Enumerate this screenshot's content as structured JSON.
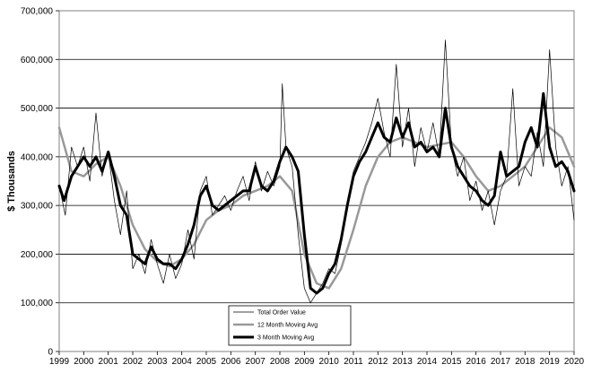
{
  "chart_data": {
    "type": "line",
    "title": "",
    "xlabel": "",
    "ylabel": "$ Thousands",
    "xlim": [
      1999,
      2020
    ],
    "ylim": [
      0,
      700000
    ],
    "y_ticks": [
      0,
      100000,
      200000,
      300000,
      400000,
      500000,
      600000,
      700000
    ],
    "y_tick_labels": [
      "0",
      "100,000",
      "200,000",
      "300,000",
      "400,000",
      "500,000",
      "600,000",
      "700,000"
    ],
    "x_ticks": [
      1999,
      2000,
      2001,
      2002,
      2003,
      2004,
      2005,
      2006,
      2007,
      2008,
      2009,
      2010,
      2011,
      2012,
      2013,
      2014,
      2015,
      2016,
      2017,
      2018,
      2019,
      2020
    ],
    "x_tick_labels": [
      "1999",
      "2000",
      "2001",
      "2002",
      "2003",
      "2004",
      "2005",
      "2006",
      "2007",
      "2008",
      "2009",
      "2010",
      "2011",
      "2012",
      "2013",
      "2014",
      "2015",
      "2016",
      "2017",
      "2018",
      "2019",
      "2020"
    ],
    "grid": "horizontal",
    "legend_position": "bottom-center",
    "series": [
      {
        "name": "Total Order Value",
        "color": "#000000",
        "width": 0.7,
        "x": [
          1999.0,
          1999.25,
          1999.5,
          1999.75,
          2000.0,
          2000.25,
          2000.5,
          2000.75,
          2001.0,
          2001.25,
          2001.5,
          2001.75,
          2002.0,
          2002.25,
          2002.5,
          2002.75,
          2003.0,
          2003.25,
          2003.5,
          2003.75,
          2004.0,
          2004.25,
          2004.5,
          2004.75,
          2005.0,
          2005.25,
          2005.5,
          2005.75,
          2006.0,
          2006.25,
          2006.5,
          2006.75,
          2007.0,
          2007.25,
          2007.5,
          2007.75,
          2008.0,
          2008.1,
          2008.25,
          2008.5,
          2008.75,
          2009.0,
          2009.25,
          2009.5,
          2009.75,
          2010.0,
          2010.25,
          2010.5,
          2010.75,
          2011.0,
          2011.25,
          2011.5,
          2011.75,
          2012.0,
          2012.25,
          2012.5,
          2012.75,
          2013.0,
          2013.25,
          2013.5,
          2013.75,
          2014.0,
          2014.25,
          2014.5,
          2014.75,
          2015.0,
          2015.25,
          2015.5,
          2015.75,
          2016.0,
          2016.25,
          2016.5,
          2016.75,
          2017.0,
          2017.25,
          2017.5,
          2017.75,
          2018.0,
          2018.25,
          2018.5,
          2018.75,
          2019.0,
          2019.25,
          2019.5,
          2019.75,
          2020.0
        ],
        "values": [
          340000,
          280000,
          420000,
          380000,
          420000,
          350000,
          490000,
          360000,
          410000,
          310000,
          240000,
          330000,
          170000,
          200000,
          160000,
          230000,
          180000,
          140000,
          200000,
          150000,
          180000,
          250000,
          190000,
          330000,
          360000,
          280000,
          300000,
          320000,
          290000,
          330000,
          360000,
          310000,
          390000,
          330000,
          370000,
          340000,
          380000,
          550000,
          420000,
          380000,
          240000,
          130000,
          100000,
          120000,
          140000,
          170000,
          160000,
          220000,
          300000,
          370000,
          400000,
          430000,
          470000,
          520000,
          450000,
          400000,
          590000,
          420000,
          500000,
          380000,
          460000,
          410000,
          470000,
          400000,
          640000,
          420000,
          360000,
          400000,
          310000,
          350000,
          290000,
          330000,
          260000,
          330000,
          360000,
          540000,
          340000,
          380000,
          360000,
          450000,
          380000,
          620000,
          420000,
          340000,
          380000,
          270000
        ]
      },
      {
        "name": "12 Month Moving Avg",
        "color": "#999999",
        "width": 2.5,
        "x": [
          1999.0,
          1999.5,
          2000.0,
          2000.5,
          2001.0,
          2001.5,
          2002.0,
          2002.5,
          2003.0,
          2003.5,
          2004.0,
          2004.5,
          2005.0,
          2005.5,
          2006.0,
          2006.5,
          2007.0,
          2007.5,
          2008.0,
          2008.5,
          2009.0,
          2009.5,
          2010.0,
          2010.5,
          2011.0,
          2011.5,
          2012.0,
          2012.5,
          2013.0,
          2013.5,
          2014.0,
          2014.5,
          2015.0,
          2015.5,
          2016.0,
          2016.5,
          2017.0,
          2017.5,
          2018.0,
          2018.5,
          2019.0,
          2019.5,
          2020.0
        ],
        "values": [
          460000,
          370000,
          360000,
          385000,
          400000,
          340000,
          260000,
          210000,
          185000,
          175000,
          190000,
          220000,
          270000,
          290000,
          300000,
          320000,
          330000,
          340000,
          360000,
          330000,
          200000,
          140000,
          130000,
          170000,
          250000,
          340000,
          400000,
          430000,
          440000,
          430000,
          420000,
          425000,
          430000,
          400000,
          360000,
          330000,
          340000,
          360000,
          380000,
          420000,
          460000,
          440000,
          380000
        ]
      },
      {
        "name": "3 Month Moving Avg",
        "color": "#000000",
        "width": 3,
        "x": [
          1999.0,
          1999.2,
          1999.5,
          1999.75,
          2000.0,
          2000.25,
          2000.5,
          2000.75,
          2001.0,
          2001.25,
          2001.5,
          2001.75,
          2002.0,
          2002.25,
          2002.5,
          2002.75,
          2003.0,
          2003.25,
          2003.5,
          2003.75,
          2004.0,
          2004.25,
          2004.5,
          2004.75,
          2005.0,
          2005.25,
          2005.5,
          2005.75,
          2006.0,
          2006.25,
          2006.5,
          2006.75,
          2007.0,
          2007.25,
          2007.5,
          2007.75,
          2008.0,
          2008.25,
          2008.5,
          2008.75,
          2009.0,
          2009.25,
          2009.5,
          2009.75,
          2010.0,
          2010.25,
          2010.5,
          2010.75,
          2011.0,
          2011.25,
          2011.5,
          2011.75,
          2012.0,
          2012.25,
          2012.5,
          2012.75,
          2013.0,
          2013.25,
          2013.5,
          2013.75,
          2014.0,
          2014.25,
          2014.5,
          2014.75,
          2015.0,
          2015.25,
          2015.5,
          2015.75,
          2016.0,
          2016.25,
          2016.5,
          2016.75,
          2017.0,
          2017.25,
          2017.5,
          2017.75,
          2018.0,
          2018.25,
          2018.5,
          2018.75,
          2019.0,
          2019.25,
          2019.5,
          2019.75,
          2020.0
        ],
        "values": [
          340000,
          310000,
          360000,
          380000,
          400000,
          380000,
          400000,
          370000,
          410000,
          360000,
          300000,
          280000,
          200000,
          190000,
          180000,
          215000,
          190000,
          180000,
          180000,
          170000,
          190000,
          220000,
          260000,
          320000,
          340000,
          300000,
          290000,
          300000,
          310000,
          320000,
          330000,
          330000,
          380000,
          340000,
          330000,
          350000,
          390000,
          420000,
          400000,
          370000,
          240000,
          130000,
          120000,
          130000,
          160000,
          180000,
          230000,
          300000,
          360000,
          390000,
          410000,
          440000,
          470000,
          440000,
          430000,
          480000,
          440000,
          470000,
          420000,
          430000,
          410000,
          420000,
          400000,
          500000,
          420000,
          380000,
          360000,
          340000,
          330000,
          310000,
          300000,
          320000,
          410000,
          360000,
          370000,
          380000,
          430000,
          460000,
          420000,
          530000,
          420000,
          380000,
          390000,
          370000,
          330000
        ]
      }
    ]
  }
}
